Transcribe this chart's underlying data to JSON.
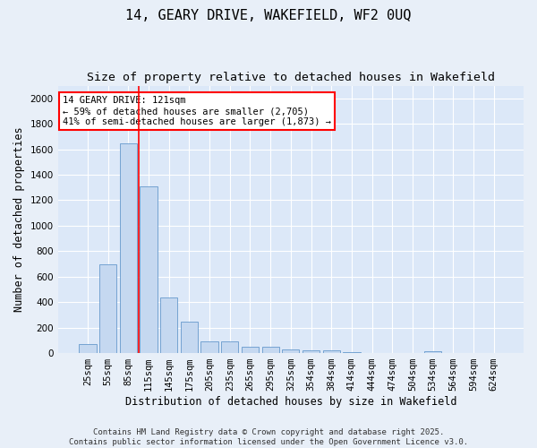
{
  "title": "14, GEARY DRIVE, WAKEFIELD, WF2 0UQ",
  "subtitle": "Size of property relative to detached houses in Wakefield",
  "xlabel": "Distribution of detached houses by size in Wakefield",
  "ylabel": "Number of detached properties",
  "bar_color": "#c5d8f0",
  "bar_edge_color": "#6699cc",
  "background_color": "#dce8f8",
  "fig_background_color": "#e8eff8",
  "grid_color": "#ffffff",
  "categories": [
    "25sqm",
    "55sqm",
    "85sqm",
    "115sqm",
    "145sqm",
    "175sqm",
    "205sqm",
    "235sqm",
    "265sqm",
    "295sqm",
    "325sqm",
    "354sqm",
    "384sqm",
    "414sqm",
    "444sqm",
    "474sqm",
    "504sqm",
    "534sqm",
    "564sqm",
    "594sqm",
    "624sqm"
  ],
  "values": [
    70,
    700,
    1650,
    1310,
    440,
    250,
    95,
    90,
    50,
    50,
    30,
    25,
    25,
    10,
    0,
    0,
    0,
    15,
    0,
    0,
    0
  ],
  "ylim": [
    0,
    2100
  ],
  "yticks": [
    0,
    200,
    400,
    600,
    800,
    1000,
    1200,
    1400,
    1600,
    1800,
    2000
  ],
  "red_line_index": 2.5,
  "annotation_title": "14 GEARY DRIVE: 121sqm",
  "annotation_line1": "← 59% of detached houses are smaller (2,705)",
  "annotation_line2": "41% of semi-detached houses are larger (1,873) →",
  "footer_line1": "Contains HM Land Registry data © Crown copyright and database right 2025.",
  "footer_line2": "Contains public sector information licensed under the Open Government Licence v3.0.",
  "title_fontsize": 11,
  "subtitle_fontsize": 9.5,
  "ylabel_fontsize": 8.5,
  "xlabel_fontsize": 8.5,
  "tick_fontsize": 7.5,
  "annotation_fontsize": 7.5,
  "footer_fontsize": 6.5
}
